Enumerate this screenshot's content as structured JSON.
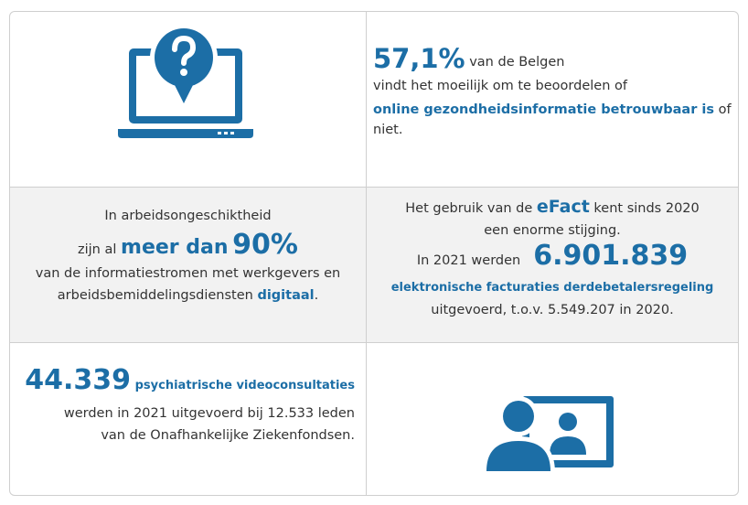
{
  "colors": {
    "accent": "#1c6ea6",
    "border": "#cfcfcf",
    "band": "#f2f2f2"
  },
  "icons": [
    "laptop-question-icon",
    "video-consultation-icon"
  ],
  "cell1": {
    "icon": "laptop-question-icon"
  },
  "cell2": {
    "big": "57,1%",
    "line1_rest": " van de Belgen",
    "line2": "vindt het moeilijk om te beoordelen of",
    "highlight": "online gezondheidsinformatie betrouwbaar is",
    "line3_rest": " of niet."
  },
  "cell3": {
    "line1": "In arbeidsongeschiktheid",
    "line2_pre": "zijn al ",
    "line2_mid": "meer dan",
    "line2_big": "90%",
    "line3": "van de informatiestromen met werkgevers en",
    "line4_pre": "arbeidsbemiddelingsdiensten ",
    "line4_hl": "digitaal",
    "line4_post": "."
  },
  "cell4": {
    "line1_pre": "Het gebruik van de ",
    "efact": "eFact",
    "line1_post": " kent sinds 2020",
    "line2": "een enorme stijging.",
    "line3_pre": "In 2021 werden",
    "big": "6.901.839",
    "line4": "elektronische facturaties derdebetalersregeling",
    "line5": "uitgevoerd, t.o.v. 5.549.207 in 2020."
  },
  "cell5": {
    "big": "44.339",
    "sub": "psychiatrische videoconsultaties",
    "line2": "werden in 2021 uitgevoerd bij 12.533 leden",
    "line3": "van de Onafhankelijke Ziekenfondsen."
  },
  "cell6": {
    "icon": "video-consultation-icon"
  }
}
